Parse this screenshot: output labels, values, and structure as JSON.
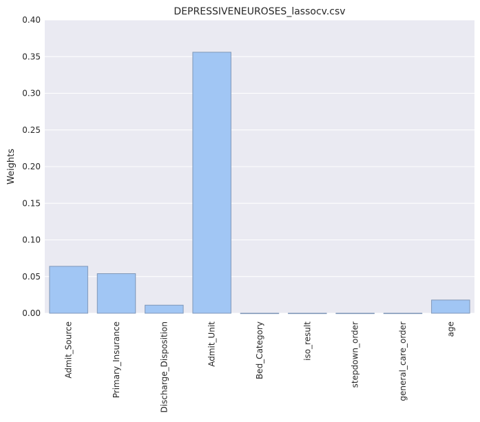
{
  "chart_data": {
    "type": "bar",
    "title": "DEPRESSIVENEUROSES_lassocv.csv",
    "xlabel": "",
    "ylabel": "Weights",
    "categories": [
      "Admit_Source",
      "Primary_Insurance",
      "Discharge_Disposition",
      "Admit_Unit",
      "Bed_Category",
      "iso_result",
      "stepdown_order",
      "general_care_order",
      "age"
    ],
    "values": [
      0.064,
      0.054,
      0.011,
      0.356,
      0.0,
      0.0,
      0.0,
      0.0,
      0.018
    ],
    "ylim": [
      0,
      0.4
    ],
    "yticks": [
      "0.00",
      "0.05",
      "0.10",
      "0.15",
      "0.20",
      "0.25",
      "0.30",
      "0.35",
      "0.40"
    ],
    "grid": true,
    "colors": {
      "background": "#eaeaf2",
      "bar_fill": "#a1c6f4",
      "bar_edge": "#7f97b8",
      "grid": "#ffffff"
    }
  }
}
